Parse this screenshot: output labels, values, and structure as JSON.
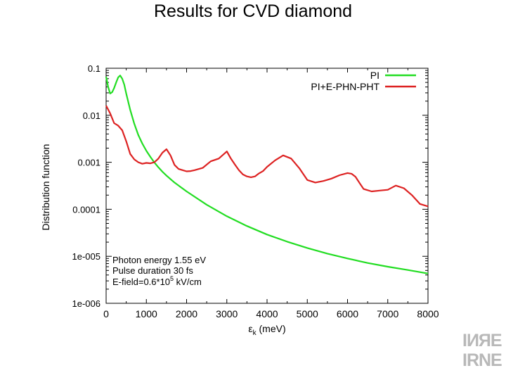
{
  "slide": {
    "title": "Results for CVD diamond"
  },
  "logo": {
    "line1": "IИЯE",
    "line2": "IRNE"
  },
  "chart_data": {
    "type": "line",
    "title": "Results for CVD diamond",
    "xlabel_main": "ε",
    "xlabel_sub": "k",
    "xlabel_rest": " (meV)",
    "ylabel": "Distribution function",
    "xlim": [
      0,
      8000
    ],
    "ylim": [
      1e-06,
      0.1
    ],
    "yscale": "log",
    "x_ticks": [
      0,
      1000,
      2000,
      3000,
      4000,
      5000,
      6000,
      7000,
      8000
    ],
    "x_tick_labels": [
      "0",
      "1000",
      "2000",
      "3000",
      "4000",
      "5000",
      "6000",
      "7000",
      "8000"
    ],
    "y_ticks": [
      1e-06,
      1e-05,
      0.0001,
      0.001,
      0.01,
      0.1
    ],
    "y_tick_labels": [
      "1e-006",
      "1e-005",
      "0.0001",
      "0.001",
      "0.01",
      "0.1"
    ],
    "legend": {
      "position": "top-right"
    },
    "series": [
      {
        "name": "PI",
        "color": "#22dd22",
        "x": [
          0,
          50,
          100,
          150,
          200,
          250,
          300,
          350,
          400,
          450,
          500,
          600,
          700,
          800,
          900,
          1000,
          1100,
          1200,
          1300,
          1400,
          1500,
          1700,
          2000,
          2500,
          3000,
          3500,
          4000,
          4500,
          5000,
          5500,
          6000,
          6500,
          7000,
          7500,
          8000
        ],
        "y": [
          0.066,
          0.04,
          0.029,
          0.031,
          0.038,
          0.05,
          0.064,
          0.07,
          0.06,
          0.045,
          0.029,
          0.013,
          0.0066,
          0.0038,
          0.0025,
          0.00175,
          0.0013,
          0.00099,
          0.00078,
          0.00063,
          0.00052,
          0.00037,
          0.00024,
          0.000125,
          7.1e-05,
          4.4e-05,
          2.9e-05,
          2.05e-05,
          1.5e-05,
          1.14e-05,
          9e-06,
          7.2e-06,
          6e-06,
          5.1e-06,
          4.3e-06
        ]
      },
      {
        "name": "PI+E-PHN-PHT",
        "color": "#dd2222",
        "x": [
          0,
          100,
          200,
          300,
          400,
          500,
          600,
          700,
          800,
          900,
          1000,
          1100,
          1200,
          1300,
          1400,
          1500,
          1600,
          1700,
          1800,
          1900,
          2000,
          2100,
          2200,
          2400,
          2600,
          2800,
          3000,
          3100,
          3200,
          3300,
          3400,
          3500,
          3600,
          3700,
          3800,
          3900,
          4000,
          4200,
          4400,
          4600,
          4800,
          5000,
          5200,
          5400,
          5600,
          5800,
          6000,
          6100,
          6200,
          6300,
          6400,
          6600,
          6800,
          7000,
          7200,
          7400,
          7600,
          7800,
          8000
        ],
        "y": [
          0.016,
          0.011,
          0.0068,
          0.006,
          0.0048,
          0.0028,
          0.0015,
          0.00115,
          0.001,
          0.00093,
          0.00097,
          0.00095,
          0.001,
          0.0012,
          0.0016,
          0.0019,
          0.0014,
          0.00088,
          0.00072,
          0.00068,
          0.00064,
          0.00065,
          0.00068,
          0.00076,
          0.00105,
          0.0012,
          0.0017,
          0.0012,
          0.0009,
          0.00068,
          0.00055,
          0.0005,
          0.00048,
          0.0005,
          0.00058,
          0.00065,
          0.0008,
          0.0011,
          0.0014,
          0.0012,
          0.00075,
          0.00042,
          0.00037,
          0.0004,
          0.00045,
          0.00053,
          0.00059,
          0.00057,
          0.00049,
          0.00036,
          0.00027,
          0.00024,
          0.00025,
          0.00026,
          0.00032,
          0.00028,
          0.0002,
          0.00013,
          0.000115
        ]
      }
    ],
    "annotations": [
      "Photon energy 1.55 eV",
      "Pulse duration 30 fs",
      "E-field=0.6*10",
      "5",
      " kV/cm"
    ]
  }
}
